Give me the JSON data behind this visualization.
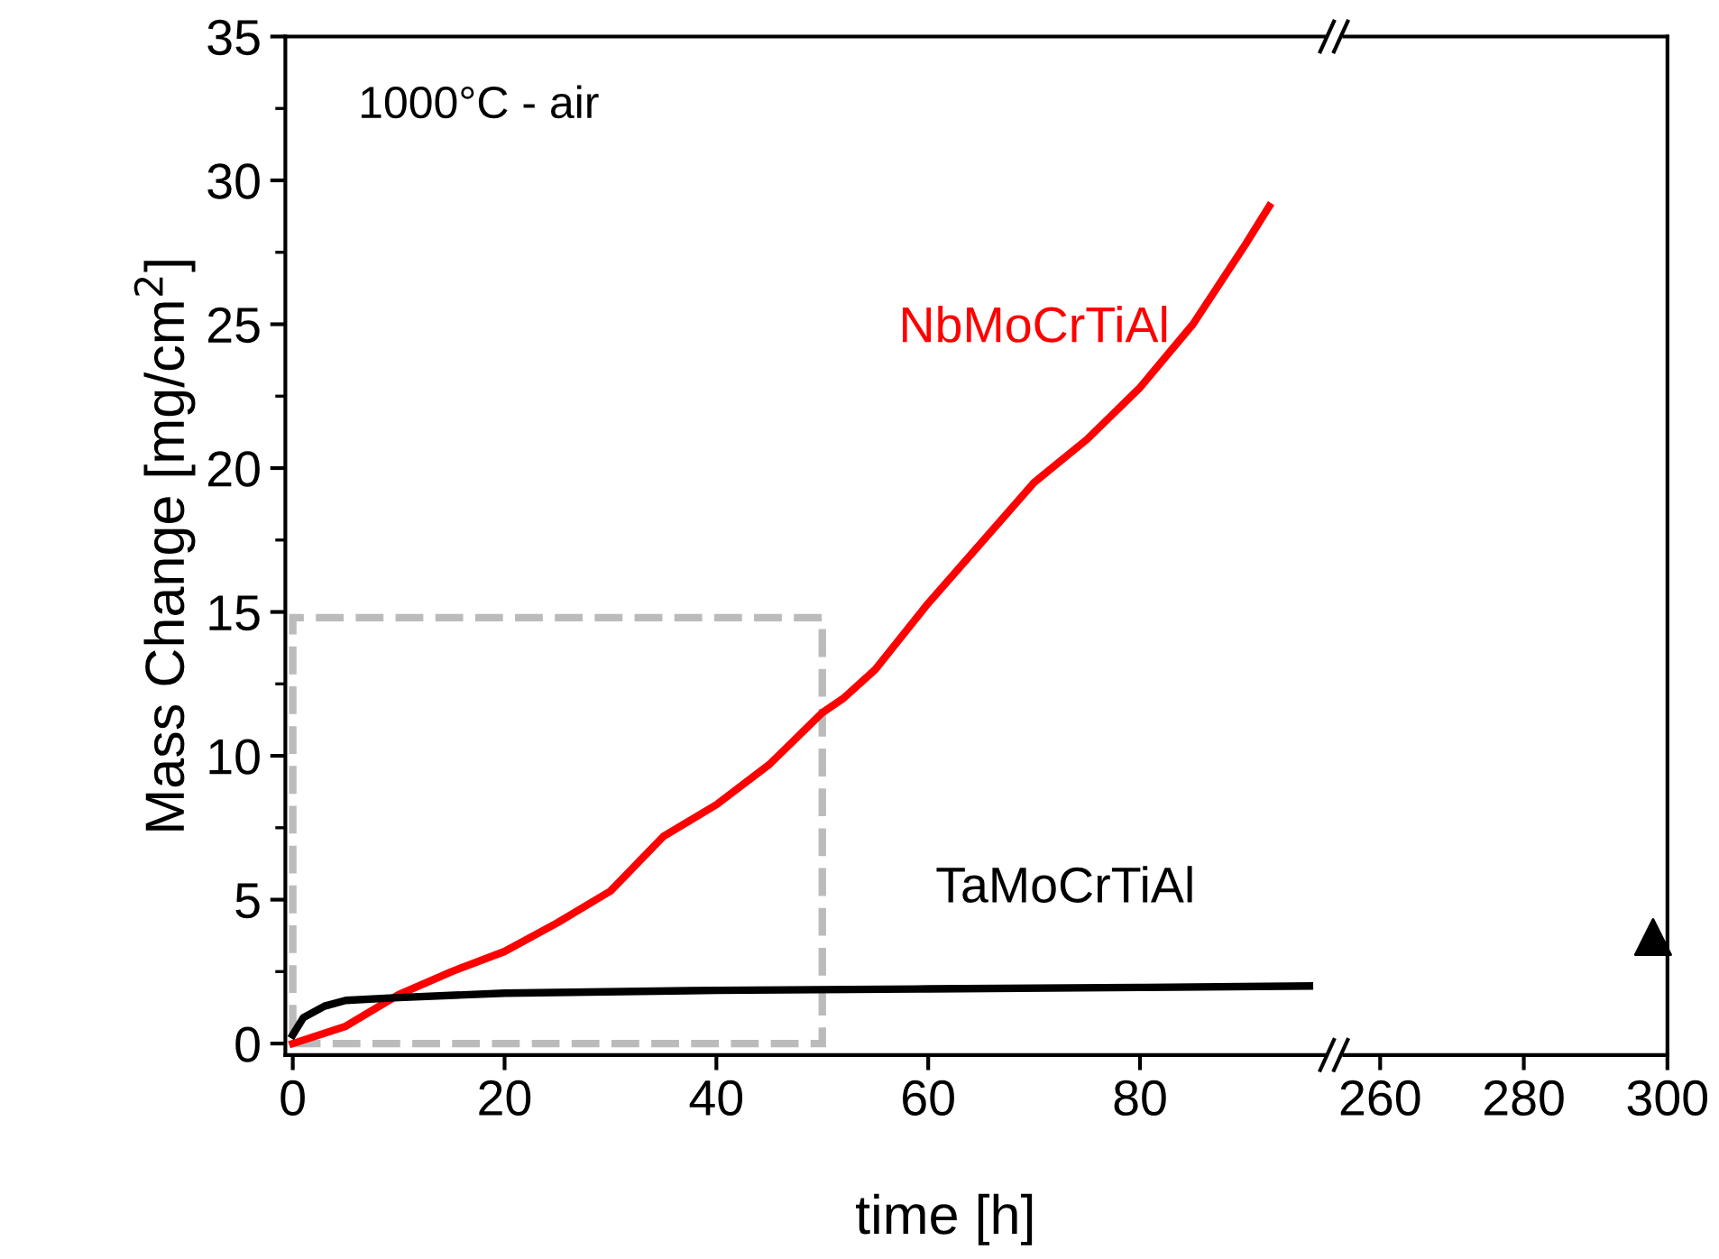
{
  "chart_data": [
    {
      "type": "line",
      "xlabel": "time [h]",
      "ylabel": "Mass Change [mg/cm$^{2}$]",
      "annotations": [
        "1000°C - air"
      ],
      "xlim": [
        -0.7,
        97.5
      ],
      "xticks": [
        0,
        20,
        40,
        60,
        80
      ],
      "ylim": [
        -0.4,
        35
      ],
      "yticks": [
        0,
        5,
        10,
        15,
        20,
        25,
        30,
        35
      ],
      "grid": false,
      "legend": false,
      "marker": "none",
      "line_style": "solid",
      "series": [
        {
          "name": "NbMoCrTiAl",
          "color": "#ff0000",
          "x": [
            0,
            5,
            10,
            15,
            20,
            25,
            30,
            35,
            40,
            45,
            50,
            52,
            55,
            60,
            65,
            70,
            75,
            80,
            85,
            90,
            92.2
          ],
          "values": [
            0,
            0.6,
            1.7,
            2.5,
            3.2,
            4.2,
            5.3,
            7.2,
            8.3,
            9.7,
            11.5,
            12,
            13,
            15.3,
            17.4,
            19.5,
            21,
            22.8,
            25,
            27.8,
            29.1
          ]
        },
        {
          "name": "TaMoCrTiAl",
          "color": "#000000",
          "x": [
            0,
            1,
            3,
            5,
            10,
            20,
            40,
            60,
            80,
            96
          ],
          "values": [
            0.3,
            0.9,
            1.3,
            1.5,
            1.6,
            1.75,
            1.85,
            1.9,
            1.95,
            2.0
          ]
        }
      ]
    },
    {
      "type": "scatter",
      "xlim": [
        255,
        300
      ],
      "xticks": [
        260,
        280,
        300
      ],
      "ylim": [
        -0.4,
        35
      ],
      "tick_labels": "x",
      "grid": false,
      "legend": false,
      "marker": "triangle",
      "series": [
        {
          "color": "#000000",
          "x": [
            298
          ],
          "values": [
            3.7
          ]
        }
      ]
    }
  ]
}
